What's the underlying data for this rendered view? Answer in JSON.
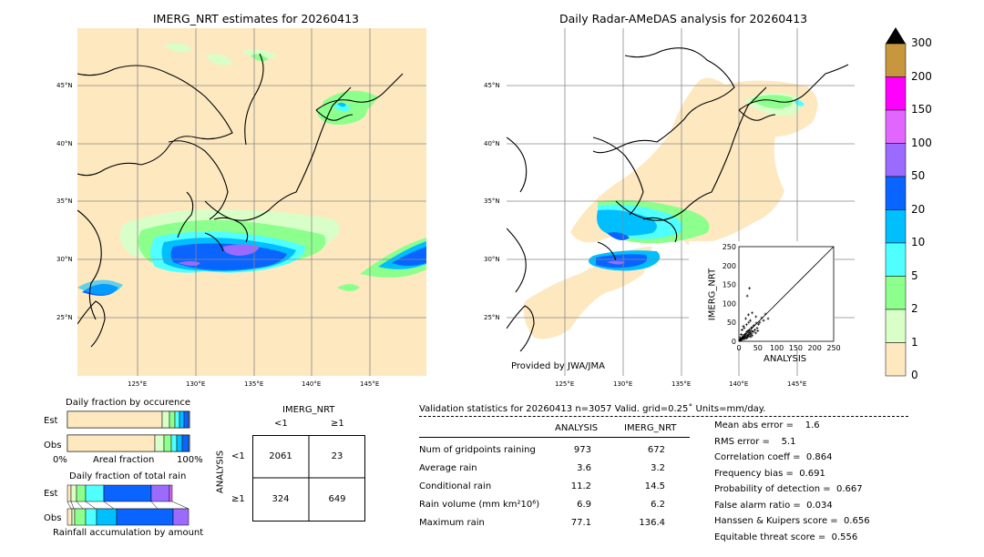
{
  "left_map": {
    "title": "IMERG_NRT estimates for 20260413",
    "lat_labels": [
      "45°N",
      "40°N",
      "35°N",
      "30°N",
      "25°N"
    ],
    "lon_labels": [
      "125°E",
      "130°E",
      "135°E",
      "140°E",
      "145°E"
    ]
  },
  "right_map": {
    "title": "Daily Radar-AMeDAS analysis for 20260413",
    "lat_labels": [
      "45°N",
      "40°N",
      "35°N",
      "30°N",
      "25°N"
    ],
    "lon_labels": [
      "125°E",
      "130°E",
      "135°E",
      "140°E",
      "145°E"
    ],
    "credit": "Provided by JWA/JMA"
  },
  "colorbar": {
    "ticks": [
      "300",
      "200",
      "150",
      "100",
      "50",
      "20",
      "10",
      "5",
      "2",
      "1",
      "0"
    ],
    "colors": [
      "#c8963c",
      "#ff00ff",
      "#e066ff",
      "#9b6bff",
      "#0a64ff",
      "#00bfff",
      "#50ffff",
      "#8cff8c",
      "#d8ffc8",
      "#fde8c0"
    ]
  },
  "inset_scatter": {
    "xlabel": "ANALYSIS",
    "ylabel": "IMERG_NRT",
    "ticks": [
      "0",
      "50",
      "100",
      "150",
      "200",
      "250"
    ]
  },
  "fraction_occurrence": {
    "title": "Daily fraction by occurence",
    "row_est": "Est",
    "row_obs": "Obs",
    "axis_left": "0%",
    "axis_mid": "Areal fraction",
    "axis_right": "100%"
  },
  "fraction_total": {
    "title": "Daily fraction of total rain",
    "row_est": "Est",
    "row_obs": "Obs",
    "axis_caption": "Rainfall accumulation by amount"
  },
  "contingency": {
    "title": "IMERG_NRT",
    "col_lt1": "<1",
    "col_ge1": "≥1",
    "row_axis": "ANALYSIS",
    "row_lt1": "<1",
    "row_ge1": "≥1",
    "v11": "2061",
    "v12": "23",
    "v21": "324",
    "v22": "649"
  },
  "validation": {
    "header": "Validation statistics for 20260413  n=3057 Valid. grid=0.25˚ Units=mm/day.",
    "col_analysis": "ANALYSIS",
    "col_imerg": "IMERG_NRT",
    "rows": [
      {
        "label": "Num of gridpoints raining",
        "analysis": "973",
        "imerg": "672"
      },
      {
        "label": "Average rain",
        "analysis": "3.6",
        "imerg": "3.2"
      },
      {
        "label": "Conditional rain",
        "analysis": "11.2",
        "imerg": "14.5"
      },
      {
        "label": "Rain volume (mm km²10⁶)",
        "analysis": "6.9",
        "imerg": "6.2"
      },
      {
        "label": "Maximum rain",
        "analysis": "77.1",
        "imerg": "136.4"
      }
    ],
    "scores": [
      "Mean abs error =    1.6",
      "RMS error =    5.1",
      "Correlation coeff =  0.864",
      "Frequency bias =  0.691",
      "Probability of detection =  0.667",
      "False alarm ratio =  0.034",
      "Hanssen & Kuipers score =  0.656",
      "Equitable threat score =  0.556"
    ]
  },
  "chart_data": [
    {
      "type": "table",
      "title": "IMERG_NRT",
      "columns": [
        "<1",
        "≥1"
      ],
      "rows": [
        "<1",
        "≥1"
      ],
      "values": [
        [
          2061,
          23
        ],
        [
          324,
          649
        ]
      ]
    },
    {
      "type": "scatter",
      "xlabel": "ANALYSIS",
      "ylabel": "IMERG_NRT",
      "xlim": [
        0,
        250
      ],
      "ylim": [
        0,
        250
      ],
      "points": [
        [
          2,
          3
        ],
        [
          4,
          2
        ],
        [
          5,
          6
        ],
        [
          6,
          4
        ],
        [
          8,
          9
        ],
        [
          9,
          5
        ],
        [
          10,
          12
        ],
        [
          11,
          8
        ],
        [
          12,
          15
        ],
        [
          13,
          10
        ],
        [
          14,
          6
        ],
        [
          15,
          18
        ],
        [
          16,
          12
        ],
        [
          17,
          9
        ],
        [
          18,
          20
        ],
        [
          19,
          14
        ],
        [
          20,
          8
        ],
        [
          21,
          25
        ],
        [
          22,
          16
        ],
        [
          23,
          11
        ],
        [
          24,
          28
        ],
        [
          25,
          18
        ],
        [
          26,
          13
        ],
        [
          27,
          22
        ],
        [
          28,
          30
        ],
        [
          29,
          17
        ],
        [
          30,
          24
        ],
        [
          31,
          12
        ],
        [
          32,
          35
        ],
        [
          33,
          20
        ],
        [
          34,
          27
        ],
        [
          35,
          15
        ],
        [
          36,
          38
        ],
        [
          38,
          25
        ],
        [
          40,
          42
        ],
        [
          42,
          30
        ],
        [
          44,
          22
        ],
        [
          46,
          48
        ],
        [
          48,
          35
        ],
        [
          50,
          28
        ],
        [
          52,
          45
        ],
        [
          18,
          60
        ],
        [
          25,
          70
        ],
        [
          30,
          55
        ],
        [
          12,
          40
        ],
        [
          22,
          120
        ],
        [
          28,
          140
        ],
        [
          35,
          75
        ],
        [
          45,
          65
        ],
        [
          55,
          50
        ],
        [
          60,
          62
        ],
        [
          65,
          55
        ],
        [
          70,
          72
        ],
        [
          77,
          60
        ],
        [
          8,
          30
        ],
        [
          6,
          18
        ],
        [
          3,
          10
        ],
        [
          14,
          35
        ],
        [
          20,
          44
        ],
        [
          26,
          50
        ]
      ]
    }
  ]
}
